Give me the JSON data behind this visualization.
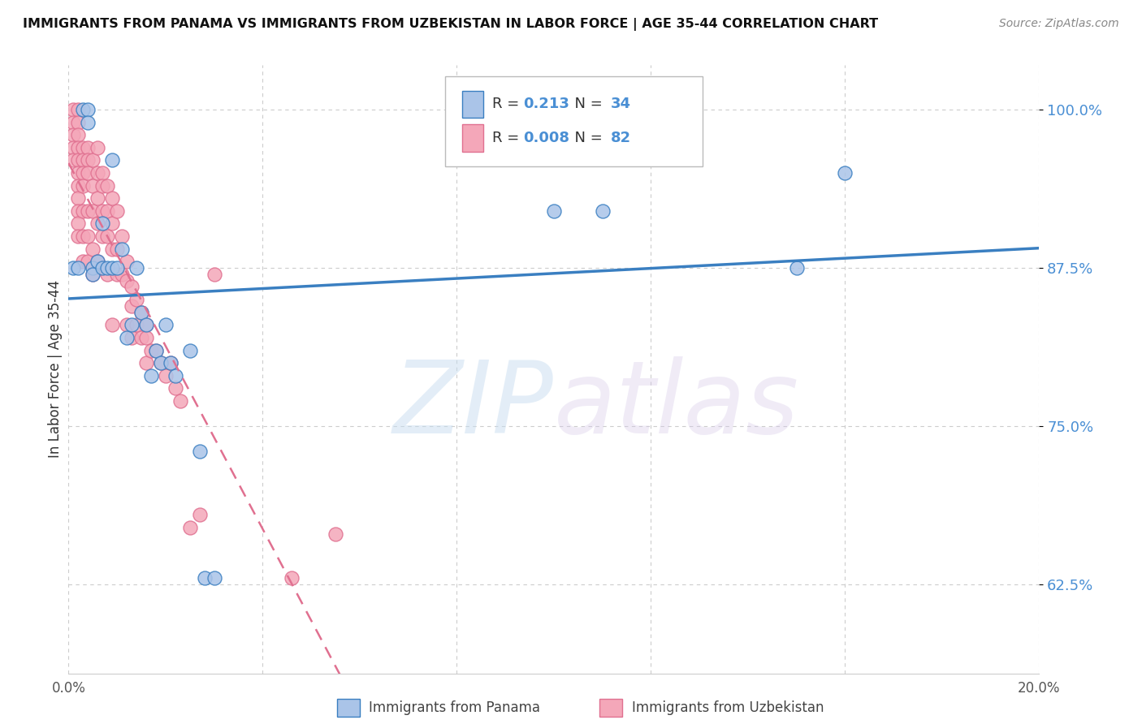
{
  "title": "IMMIGRANTS FROM PANAMA VS IMMIGRANTS FROM UZBEKISTAN IN LABOR FORCE | AGE 35-44 CORRELATION CHART",
  "source": "Source: ZipAtlas.com",
  "ylabel": "In Labor Force | Age 35-44",
  "yticks": [
    0.625,
    0.75,
    0.875,
    1.0
  ],
  "ytick_labels": [
    "62.5%",
    "75.0%",
    "87.5%",
    "100.0%"
  ],
  "xlim": [
    0.0,
    0.2
  ],
  "ylim": [
    0.555,
    1.035
  ],
  "panama_R": "0.213",
  "panama_N": "34",
  "uzbekistan_R": "0.008",
  "uzbekistan_N": "82",
  "panama_color": "#aac4e8",
  "uzbekistan_color": "#f4a7b9",
  "panama_line_color": "#3a7fc1",
  "uzbekistan_line_color": "#e07090",
  "background_color": "#ffffff",
  "watermark_zip": "ZIP",
  "watermark_atlas": "atlas",
  "panama_x": [
    0.001,
    0.002,
    0.003,
    0.004,
    0.004,
    0.005,
    0.005,
    0.006,
    0.007,
    0.007,
    0.008,
    0.009,
    0.009,
    0.01,
    0.011,
    0.012,
    0.013,
    0.014,
    0.015,
    0.016,
    0.017,
    0.018,
    0.019,
    0.02,
    0.021,
    0.022,
    0.025,
    0.027,
    0.028,
    0.03,
    0.1,
    0.11,
    0.15,
    0.16
  ],
  "panama_y": [
    0.875,
    0.875,
    1.0,
    1.0,
    0.99,
    0.875,
    0.87,
    0.88,
    0.91,
    0.875,
    0.875,
    0.875,
    0.96,
    0.875,
    0.89,
    0.82,
    0.83,
    0.875,
    0.84,
    0.83,
    0.79,
    0.81,
    0.8,
    0.83,
    0.8,
    0.79,
    0.81,
    0.73,
    0.63,
    0.63,
    0.92,
    0.92,
    0.875,
    0.95
  ],
  "uzbekistan_x": [
    0.001,
    0.001,
    0.001,
    0.001,
    0.001,
    0.002,
    0.002,
    0.002,
    0.002,
    0.002,
    0.002,
    0.002,
    0.002,
    0.002,
    0.002,
    0.002,
    0.003,
    0.003,
    0.003,
    0.003,
    0.003,
    0.003,
    0.003,
    0.004,
    0.004,
    0.004,
    0.004,
    0.004,
    0.004,
    0.005,
    0.005,
    0.005,
    0.005,
    0.005,
    0.006,
    0.006,
    0.006,
    0.006,
    0.006,
    0.007,
    0.007,
    0.007,
    0.007,
    0.007,
    0.008,
    0.008,
    0.008,
    0.008,
    0.009,
    0.009,
    0.009,
    0.009,
    0.01,
    0.01,
    0.01,
    0.011,
    0.011,
    0.012,
    0.012,
    0.012,
    0.013,
    0.013,
    0.013,
    0.014,
    0.014,
    0.015,
    0.015,
    0.016,
    0.016,
    0.016,
    0.017,
    0.018,
    0.019,
    0.02,
    0.021,
    0.022,
    0.023,
    0.025,
    0.027,
    0.03,
    0.046,
    0.055
  ],
  "uzbekistan_y": [
    1.0,
    0.99,
    0.98,
    0.97,
    0.96,
    1.0,
    0.99,
    0.98,
    0.97,
    0.96,
    0.95,
    0.94,
    0.93,
    0.92,
    0.91,
    0.9,
    0.97,
    0.96,
    0.95,
    0.94,
    0.92,
    0.9,
    0.88,
    0.97,
    0.96,
    0.95,
    0.92,
    0.9,
    0.88,
    0.96,
    0.94,
    0.92,
    0.89,
    0.87,
    0.97,
    0.95,
    0.93,
    0.91,
    0.88,
    0.95,
    0.94,
    0.92,
    0.9,
    0.875,
    0.94,
    0.92,
    0.9,
    0.87,
    0.93,
    0.91,
    0.89,
    0.83,
    0.92,
    0.89,
    0.87,
    0.9,
    0.87,
    0.88,
    0.865,
    0.83,
    0.86,
    0.845,
    0.82,
    0.85,
    0.83,
    0.84,
    0.82,
    0.83,
    0.82,
    0.8,
    0.81,
    0.81,
    0.8,
    0.79,
    0.8,
    0.78,
    0.77,
    0.67,
    0.68,
    0.87,
    0.63,
    0.665
  ]
}
